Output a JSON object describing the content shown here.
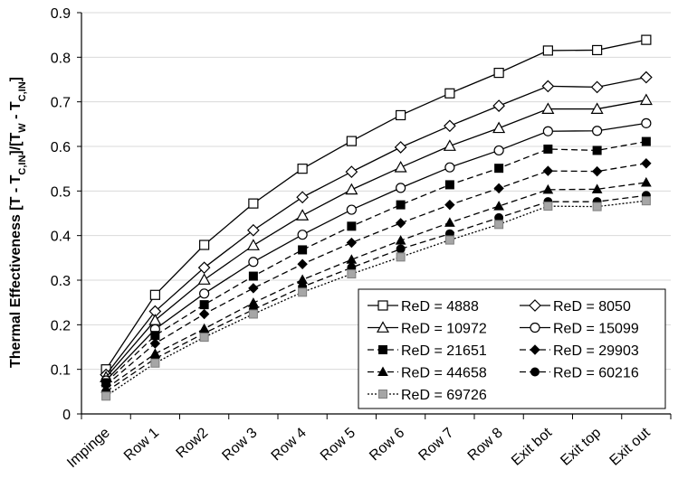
{
  "chart_data": {
    "type": "line",
    "title": "",
    "xlabel": "",
    "ylabel": {
      "parts": [
        {
          "t": "Thermal Effectiveness [T - T"
        },
        {
          "t": "C,IN",
          "sub": true
        },
        {
          "t": "]/[T"
        },
        {
          "t": "W",
          "sub": true
        },
        {
          "t": " - T"
        },
        {
          "t": "C,IN",
          "sub": true
        },
        {
          "t": "]"
        }
      ]
    },
    "ylim": [
      0,
      0.9
    ],
    "yticks": [
      "0",
      "0.1",
      "0.2",
      "0.3",
      "0.4",
      "0.5",
      "0.6",
      "0.7",
      "0.8",
      "0.9"
    ],
    "grid": true,
    "legend_position": "bottom-right",
    "categories": [
      "Impinge",
      "Row 1",
      "Row2",
      "Row 3",
      "Row 4",
      "Row 5",
      "Row 6",
      "Row 7",
      "Row 8",
      "Exit bot",
      "Exit top",
      "Exit out"
    ],
    "series": [
      {
        "name": "ReD = 4888",
        "marker": "square-open",
        "line": "solid",
        "color": "#000000",
        "values": [
          0.1,
          0.267,
          0.379,
          0.472,
          0.55,
          0.612,
          0.67,
          0.719,
          0.765,
          0.815,
          0.816,
          0.839
        ]
      },
      {
        "name": "ReD = 8050",
        "marker": "diamond-open",
        "line": "solid",
        "color": "#000000",
        "values": [
          0.088,
          0.23,
          0.328,
          0.412,
          0.486,
          0.543,
          0.598,
          0.646,
          0.691,
          0.735,
          0.733,
          0.755
        ]
      },
      {
        "name": "ReD = 10972",
        "marker": "triangle-open",
        "line": "solid",
        "color": "#000000",
        "values": [
          0.082,
          0.21,
          0.301,
          0.378,
          0.445,
          0.503,
          0.553,
          0.601,
          0.641,
          0.684,
          0.684,
          0.704
        ]
      },
      {
        "name": "ReD = 15099",
        "marker": "circle-open",
        "line": "solid",
        "color": "#000000",
        "values": [
          0.075,
          0.19,
          0.27,
          0.341,
          0.402,
          0.458,
          0.507,
          0.553,
          0.591,
          0.634,
          0.635,
          0.652
        ]
      },
      {
        "name": "ReD = 21651",
        "marker": "square-filled",
        "line": "dash",
        "color": "#000000",
        "values": [
          0.07,
          0.176,
          0.245,
          0.309,
          0.368,
          0.421,
          0.469,
          0.514,
          0.551,
          0.594,
          0.591,
          0.611
        ]
      },
      {
        "name": "ReD = 29903",
        "marker": "diamond-filled",
        "line": "dash",
        "color": "#000000",
        "values": [
          0.064,
          0.158,
          0.224,
          0.282,
          0.336,
          0.384,
          0.428,
          0.469,
          0.506,
          0.545,
          0.544,
          0.562
        ]
      },
      {
        "name": "ReD = 44658",
        "marker": "triangle-filled",
        "line": "dash",
        "color": "#000000",
        "values": [
          0.057,
          0.135,
          0.191,
          0.249,
          0.301,
          0.346,
          0.389,
          0.429,
          0.466,
          0.503,
          0.504,
          0.519
        ]
      },
      {
        "name": "ReD = 60216",
        "marker": "circle-filled",
        "line": "dash",
        "color": "#000000",
        "values": [
          0.05,
          0.124,
          0.181,
          0.234,
          0.285,
          0.328,
          0.37,
          0.404,
          0.44,
          0.476,
          0.476,
          0.49
        ]
      },
      {
        "name": "ReD = 69726",
        "marker": "square-gray",
        "line": "dot",
        "color": "#000000",
        "values": [
          0.04,
          0.114,
          0.172,
          0.224,
          0.273,
          0.314,
          0.352,
          0.39,
          0.425,
          0.466,
          0.465,
          0.478
        ]
      }
    ]
  },
  "colors": {
    "axis": "#000000",
    "grid": "#d9d9d9",
    "gray_marker_fill": "#a6a6a6",
    "background": "#ffffff"
  }
}
